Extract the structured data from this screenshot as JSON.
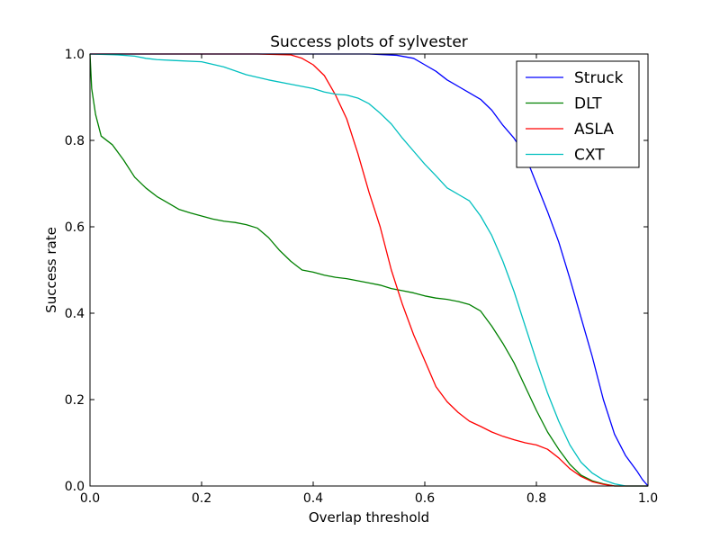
{
  "chart_data": {
    "type": "line",
    "title": "Success plots of sylvester",
    "xlabel": "Overlap threshold",
    "ylabel": "Success rate",
    "xlim": [
      0,
      1
    ],
    "ylim": [
      0,
      1
    ],
    "xticks": [
      "0.0",
      "0.2",
      "0.4",
      "0.6",
      "0.8",
      "1.0"
    ],
    "yticks": [
      "0.0",
      "0.2",
      "0.4",
      "0.6",
      "0.8",
      "1.0"
    ],
    "grid": false,
    "legend_position": "top-right",
    "series": [
      {
        "name": "Struck",
        "color": "#0000ff",
        "points": [
          [
            0,
            1.0
          ],
          [
            0.2,
            1.0
          ],
          [
            0.4,
            1.0
          ],
          [
            0.5,
            1.0
          ],
          [
            0.55,
            0.997
          ],
          [
            0.58,
            0.99
          ],
          [
            0.6,
            0.975
          ],
          [
            0.62,
            0.96
          ],
          [
            0.64,
            0.94
          ],
          [
            0.66,
            0.925
          ],
          [
            0.68,
            0.91
          ],
          [
            0.7,
            0.895
          ],
          [
            0.72,
            0.87
          ],
          [
            0.74,
            0.835
          ],
          [
            0.76,
            0.805
          ],
          [
            0.78,
            0.765
          ],
          [
            0.8,
            0.7
          ],
          [
            0.82,
            0.635
          ],
          [
            0.84,
            0.565
          ],
          [
            0.86,
            0.48
          ],
          [
            0.88,
            0.39
          ],
          [
            0.9,
            0.3
          ],
          [
            0.92,
            0.2
          ],
          [
            0.94,
            0.12
          ],
          [
            0.96,
            0.07
          ],
          [
            0.98,
            0.035
          ],
          [
            0.99,
            0.015
          ],
          [
            1.0,
            0.0
          ]
        ]
      },
      {
        "name": "DLT",
        "color": "#008000",
        "points": [
          [
            0,
            1.0
          ],
          [
            0.003,
            0.92
          ],
          [
            0.01,
            0.86
          ],
          [
            0.02,
            0.81
          ],
          [
            0.04,
            0.79
          ],
          [
            0.06,
            0.755
          ],
          [
            0.08,
            0.715
          ],
          [
            0.1,
            0.69
          ],
          [
            0.12,
            0.67
          ],
          [
            0.14,
            0.655
          ],
          [
            0.16,
            0.64
          ],
          [
            0.18,
            0.632
          ],
          [
            0.2,
            0.625
          ],
          [
            0.22,
            0.618
          ],
          [
            0.24,
            0.613
          ],
          [
            0.26,
            0.61
          ],
          [
            0.28,
            0.605
          ],
          [
            0.3,
            0.597
          ],
          [
            0.32,
            0.575
          ],
          [
            0.34,
            0.545
          ],
          [
            0.36,
            0.52
          ],
          [
            0.38,
            0.5
          ],
          [
            0.4,
            0.495
          ],
          [
            0.42,
            0.488
          ],
          [
            0.44,
            0.483
          ],
          [
            0.46,
            0.48
          ],
          [
            0.48,
            0.475
          ],
          [
            0.5,
            0.47
          ],
          [
            0.52,
            0.465
          ],
          [
            0.54,
            0.457
          ],
          [
            0.56,
            0.452
          ],
          [
            0.58,
            0.447
          ],
          [
            0.6,
            0.44
          ],
          [
            0.62,
            0.435
          ],
          [
            0.64,
            0.432
          ],
          [
            0.66,
            0.427
          ],
          [
            0.68,
            0.42
          ],
          [
            0.7,
            0.405
          ],
          [
            0.72,
            0.37
          ],
          [
            0.74,
            0.33
          ],
          [
            0.76,
            0.285
          ],
          [
            0.78,
            0.23
          ],
          [
            0.8,
            0.175
          ],
          [
            0.82,
            0.125
          ],
          [
            0.84,
            0.085
          ],
          [
            0.86,
            0.05
          ],
          [
            0.88,
            0.025
          ],
          [
            0.9,
            0.012
          ],
          [
            0.92,
            0.005
          ],
          [
            0.94,
            0.0
          ],
          [
            1.0,
            0.0
          ]
        ]
      },
      {
        "name": "ASLA",
        "color": "#ff0000",
        "points": [
          [
            0,
            1.0
          ],
          [
            0.3,
            1.0
          ],
          [
            0.36,
            0.998
          ],
          [
            0.38,
            0.99
          ],
          [
            0.4,
            0.975
          ],
          [
            0.42,
            0.95
          ],
          [
            0.44,
            0.905
          ],
          [
            0.46,
            0.85
          ],
          [
            0.48,
            0.77
          ],
          [
            0.5,
            0.68
          ],
          [
            0.52,
            0.6
          ],
          [
            0.54,
            0.5
          ],
          [
            0.56,
            0.42
          ],
          [
            0.58,
            0.35
          ],
          [
            0.6,
            0.29
          ],
          [
            0.62,
            0.23
          ],
          [
            0.64,
            0.195
          ],
          [
            0.66,
            0.17
          ],
          [
            0.68,
            0.15
          ],
          [
            0.7,
            0.138
          ],
          [
            0.72,
            0.125
          ],
          [
            0.74,
            0.115
          ],
          [
            0.76,
            0.107
          ],
          [
            0.78,
            0.1
          ],
          [
            0.8,
            0.095
          ],
          [
            0.82,
            0.085
          ],
          [
            0.84,
            0.065
          ],
          [
            0.86,
            0.04
          ],
          [
            0.88,
            0.022
          ],
          [
            0.9,
            0.01
          ],
          [
            0.92,
            0.004
          ],
          [
            0.94,
            0.0
          ],
          [
            1.0,
            0.0
          ]
        ]
      },
      {
        "name": "CXT",
        "color": "#00bfbf",
        "points": [
          [
            0,
            1.0
          ],
          [
            0.05,
            0.998
          ],
          [
            0.08,
            0.995
          ],
          [
            0.1,
            0.99
          ],
          [
            0.12,
            0.987
          ],
          [
            0.15,
            0.985
          ],
          [
            0.2,
            0.982
          ],
          [
            0.24,
            0.97
          ],
          [
            0.28,
            0.952
          ],
          [
            0.32,
            0.94
          ],
          [
            0.36,
            0.93
          ],
          [
            0.4,
            0.92
          ],
          [
            0.42,
            0.912
          ],
          [
            0.44,
            0.907
          ],
          [
            0.46,
            0.905
          ],
          [
            0.48,
            0.898
          ],
          [
            0.5,
            0.885
          ],
          [
            0.52,
            0.863
          ],
          [
            0.54,
            0.838
          ],
          [
            0.56,
            0.805
          ],
          [
            0.58,
            0.775
          ],
          [
            0.6,
            0.745
          ],
          [
            0.62,
            0.718
          ],
          [
            0.64,
            0.69
          ],
          [
            0.66,
            0.675
          ],
          [
            0.68,
            0.66
          ],
          [
            0.7,
            0.625
          ],
          [
            0.72,
            0.58
          ],
          [
            0.74,
            0.52
          ],
          [
            0.76,
            0.45
          ],
          [
            0.78,
            0.37
          ],
          [
            0.8,
            0.29
          ],
          [
            0.82,
            0.215
          ],
          [
            0.84,
            0.15
          ],
          [
            0.86,
            0.095
          ],
          [
            0.88,
            0.055
          ],
          [
            0.9,
            0.03
          ],
          [
            0.92,
            0.014
          ],
          [
            0.94,
            0.005
          ],
          [
            0.96,
            0.0
          ],
          [
            1.0,
            0.0
          ]
        ]
      }
    ]
  }
}
